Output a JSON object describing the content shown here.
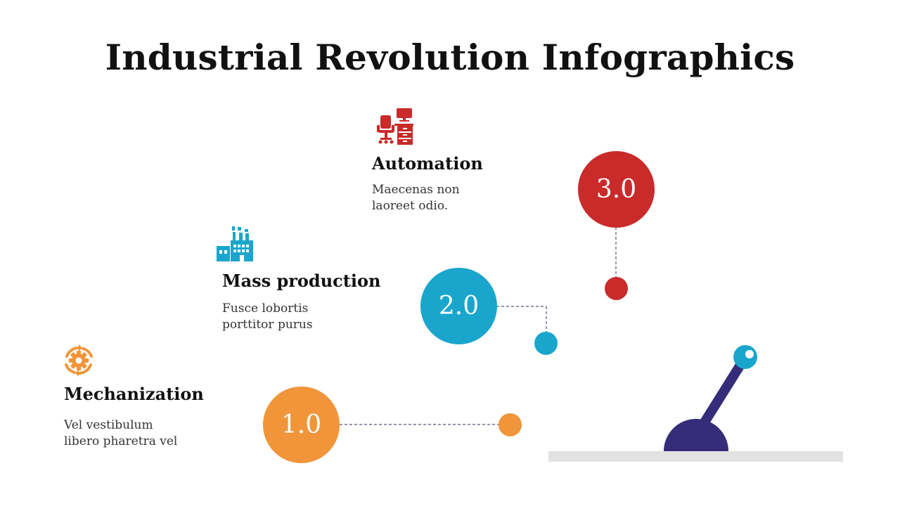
{
  "title": "Industrial Revolution Infographics",
  "colors": {
    "orange": "#F0953A",
    "blue": "#1AA6CC",
    "red": "#C82B2A",
    "navy": "#352D7A",
    "base_gray": "#E2E2E2"
  },
  "steps": [
    {
      "number": "1.0",
      "title": "Mechanization",
      "description_line1": "Vel vestibulum",
      "description_line2": "libero pharetra vel",
      "icon": "gear-cycle-icon",
      "color": "#F0953A"
    },
    {
      "number": "2.0",
      "title": "Mass production",
      "description_line1": "Fusce lobortis",
      "description_line2": "porttitor purus",
      "icon": "factory-icon",
      "color": "#1AA6CC"
    },
    {
      "number": "3.0",
      "title": "Automation",
      "description_line1": "Maecenas non",
      "description_line2": "laoreet odio.",
      "icon": "office-desk-icon",
      "color": "#C82B2A"
    }
  ],
  "lever": {
    "icon": "lever-icon"
  }
}
